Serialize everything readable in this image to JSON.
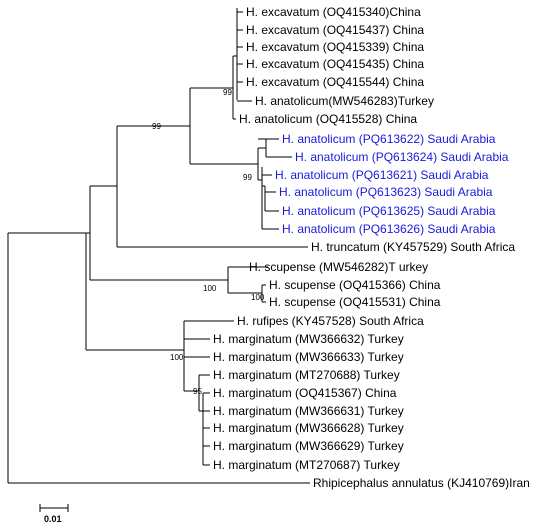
{
  "colors": {
    "default": "#000000",
    "highlight": "#1a1adc"
  },
  "leaves": [
    {
      "label": "H. excavatum (OQ415340)China",
      "highlight": false
    },
    {
      "label": "H. excavatum (OQ415437) China",
      "highlight": false
    },
    {
      "label": "H. excavatum (OQ415339) China",
      "highlight": false
    },
    {
      "label": "H. excavatum (OQ415435) China",
      "highlight": false
    },
    {
      "label": "H. excavatum (OQ415544) China",
      "highlight": false
    },
    {
      "label": "H. anatolicum(MW546283)Turkey",
      "highlight": false
    },
    {
      "label": "H. anatolicum (OQ415528) China",
      "highlight": false
    },
    {
      "label": "H. anatolicum (PQ613622) Saudi Arabia",
      "highlight": true
    },
    {
      "label": "H. anatolicum (PQ613624) Saudi Arabia",
      "highlight": true
    },
    {
      "label": "H. anatolicum (PQ613621) Saudi Arabia",
      "highlight": true
    },
    {
      "label": "H. anatolicum (PQ613623) Saudi Arabia",
      "highlight": true
    },
    {
      "label": "H. anatolicum (PQ613625) Saudi Arabia",
      "highlight": true
    },
    {
      "label": "H. anatolicum (PQ613626) Saudi Arabia",
      "highlight": true
    },
    {
      "label": "H. truncatum (KY457529) South Africa",
      "highlight": false
    },
    {
      "label": "H. scupense (MW546282)T urkey",
      "highlight": false
    },
    {
      "label": "H. scupense (OQ415366) China",
      "highlight": false
    },
    {
      "label": "H. scupense (OQ415531) China",
      "highlight": false
    },
    {
      "label": "H. rufipes (KY457528) South Africa",
      "highlight": false
    },
    {
      "label": "H. marginatum (MW366632) Turkey",
      "highlight": false
    },
    {
      "label": "H. marginatum (MW366633) Turkey",
      "highlight": false
    },
    {
      "label": "H. marginatum (MT270688) Turkey",
      "highlight": false
    },
    {
      "label": "H. marginatum (OQ415367) China",
      "highlight": false
    },
    {
      "label": "H. marginatum (MW366631) Turkey",
      "highlight": false
    },
    {
      "label": "H. marginatum (MW366628) Turkey",
      "highlight": false
    },
    {
      "label": "H. marginatum (MW366629) Turkey",
      "highlight": false
    },
    {
      "label": "H. marginatum (MT270687) Turkey",
      "highlight": false
    },
    {
      "label": "Rhipicephalus annulatus (KJ410769)Iran",
      "highlight": false
    }
  ],
  "bootstrap_values": [
    "99",
    "99",
    "99",
    "100",
    "100",
    "100",
    "95"
  ],
  "scale_bar": {
    "label": "0.01"
  }
}
